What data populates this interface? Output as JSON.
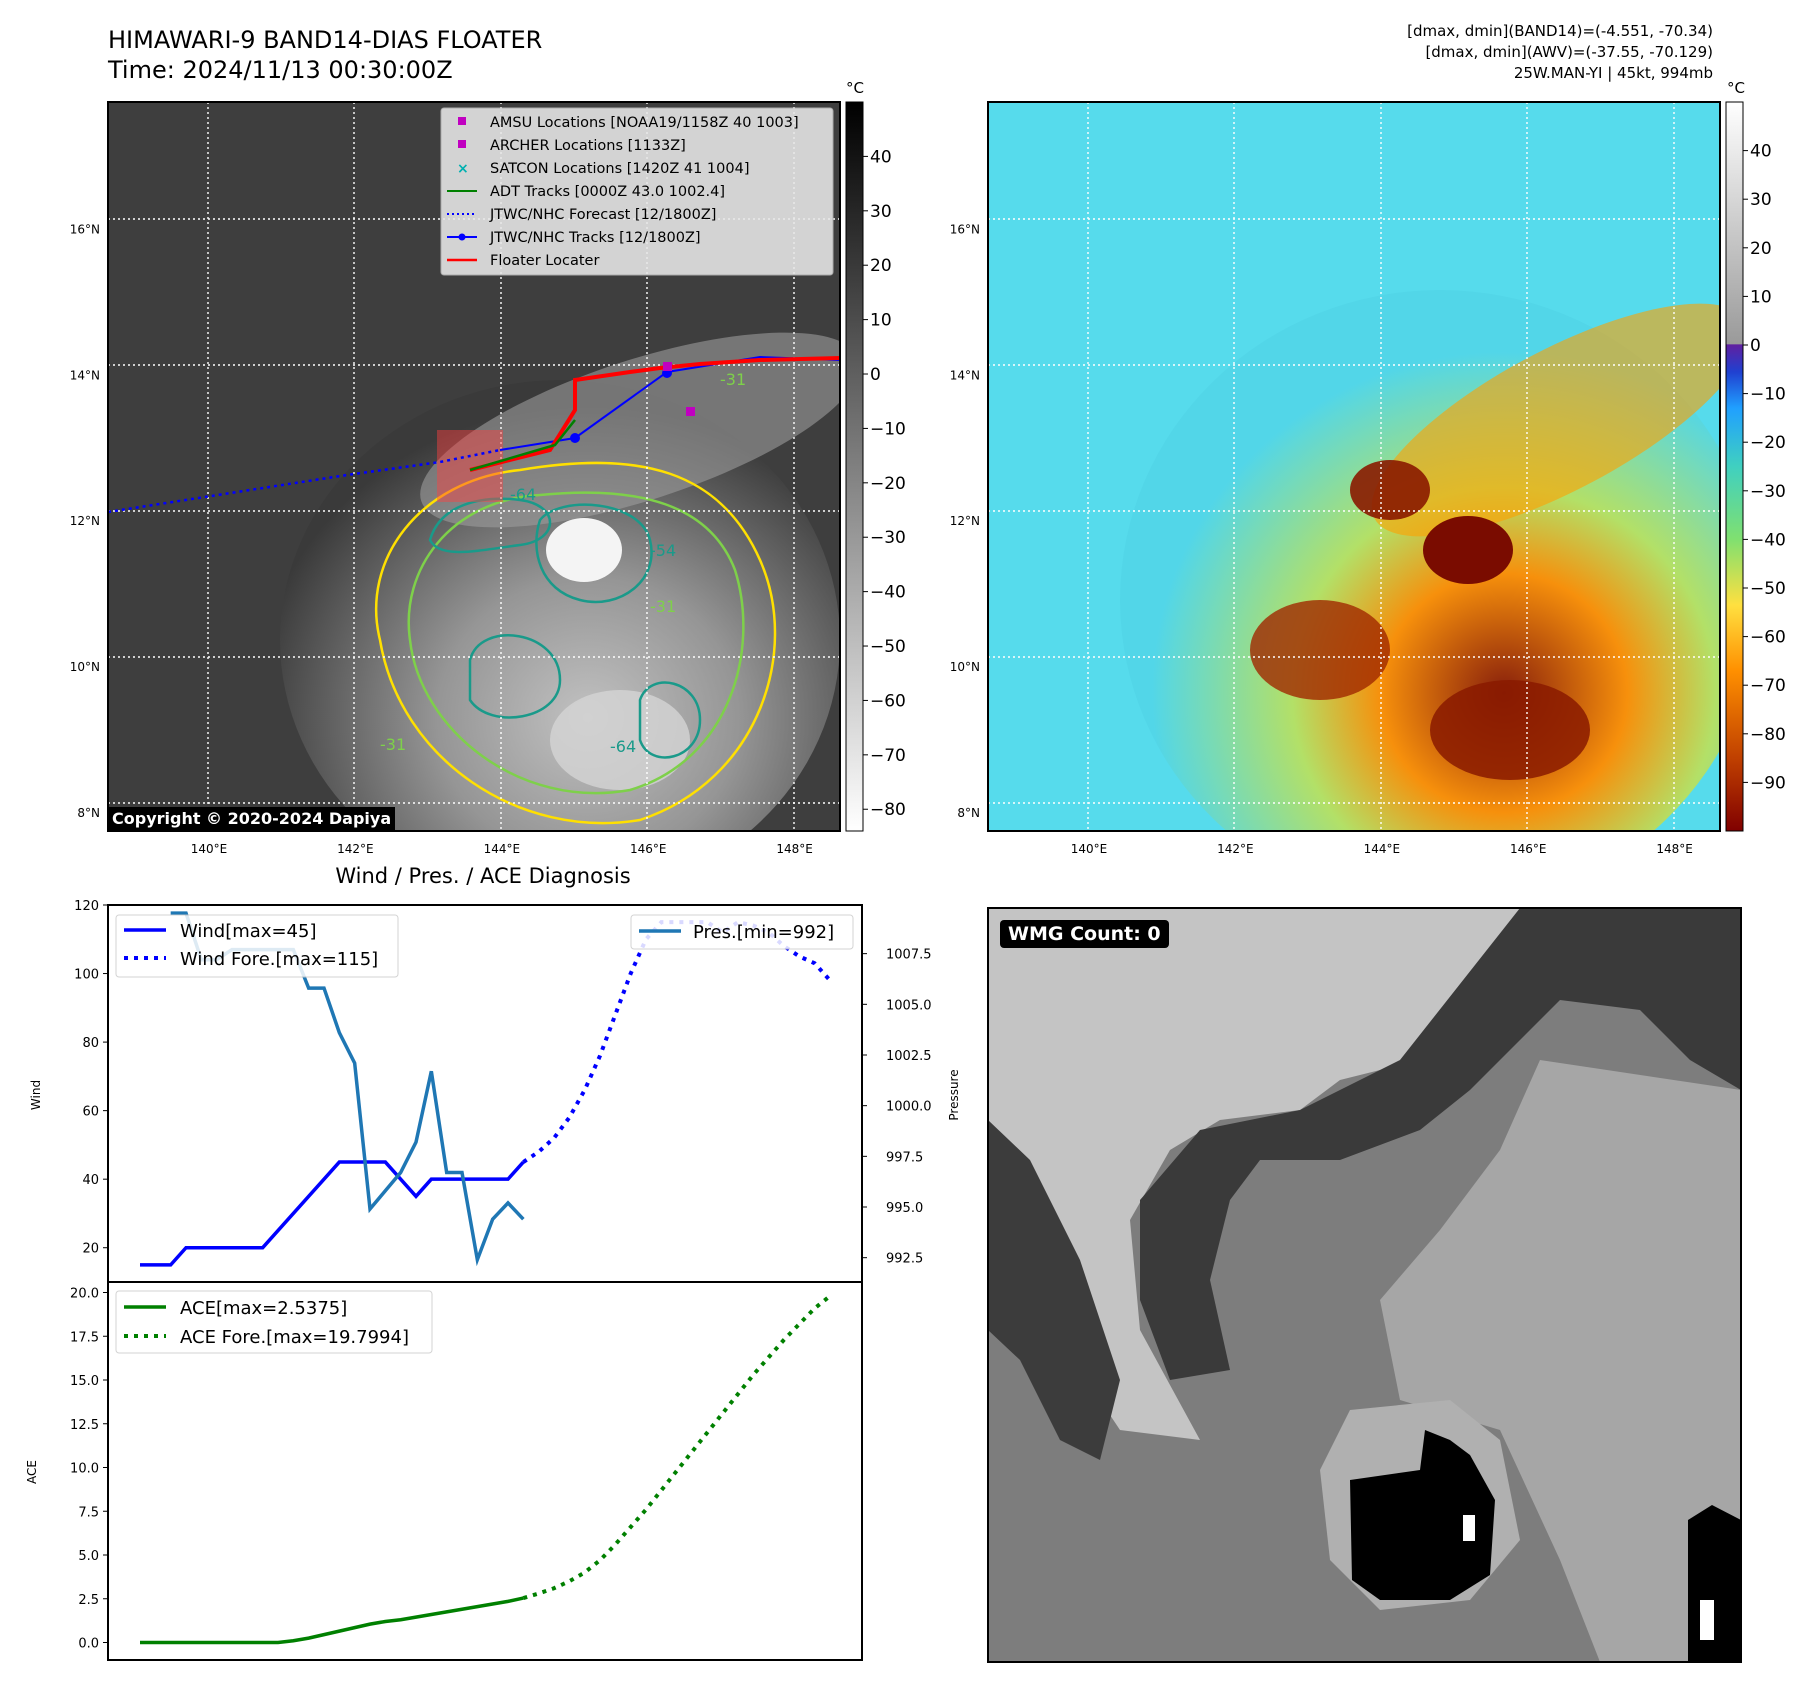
{
  "header": {
    "title_line1": "HIMAWARI-9 BAND14-DIAS FLOATER",
    "title_line2": "Time: 2024/11/13 00:30:00Z",
    "info_line1": "[dmax, dmin](BAND14)=(-4.551, -70.34)",
    "info_line2": "[dmax, dmin](AWV)=(-37.55, -70.129)",
    "info_line3": "25W.MAN-YI | 45kt, 994mb"
  },
  "map_axes": {
    "lat_labels": [
      "16°N",
      "14°N",
      "12°N",
      "10°N",
      "8°N"
    ],
    "lat_values": [
      16,
      14,
      12,
      10,
      8
    ],
    "lon_labels": [
      "140°E",
      "142°E",
      "144°E",
      "146°E",
      "148°E"
    ],
    "lon_values": [
      140,
      142,
      144,
      146,
      148
    ],
    "lon_range": [
      138.62,
      148.62
    ],
    "lat_range": [
      7.75,
      17.75
    ]
  },
  "ir_colorbar": {
    "unit": "°C",
    "ticks": [
      "40",
      "30",
      "20",
      "10",
      "0",
      "−10",
      "−20",
      "−30",
      "−40",
      "−50",
      "−60",
      "−70",
      "−80"
    ],
    "values": [
      40,
      30,
      20,
      10,
      0,
      -10,
      -20,
      -30,
      -40,
      -50,
      -60,
      -70,
      -80
    ],
    "range": [
      -84,
      50
    ]
  },
  "color_colorbar": {
    "unit": "°C",
    "ticks": [
      "40",
      "30",
      "20",
      "10",
      "0",
      "−10",
      "−20",
      "−30",
      "−40",
      "−50",
      "−60",
      "−70",
      "−80",
      "−90"
    ],
    "values": [
      40,
      30,
      20,
      10,
      0,
      -10,
      -20,
      -30,
      -40,
      -50,
      -60,
      -70,
      -80,
      -90
    ],
    "range": [
      -100,
      50
    ]
  },
  "legend": {
    "items": [
      "AMSU Locations [NOAA19/1158Z 40 1003]",
      "ARCHER Locations [1133Z]",
      "SATCON Locations [1420Z 41 1004]",
      "ADT Tracks [0000Z 43.0 1002.4]",
      "JTWC/NHC Forecast [12/1800Z]",
      "JTWC/NHC Tracks [12/1800Z]",
      "Floater Locater"
    ],
    "colors": [
      "#c000c0",
      "#c000c0",
      "#00b0b0",
      "#008000",
      "#0000ff",
      "#0000ff",
      "#ff0000"
    ]
  },
  "contour_labels": [
    "-64",
    "-54",
    "-31",
    "-64",
    "-31",
    "-31"
  ],
  "copyright": "Copyright © 2020-2024 Dapiya",
  "chart_data": [
    {
      "type": "line",
      "title": "Wind / Pres. / ACE Diagnosis",
      "ylabel": "Wind",
      "ylim": [
        10,
        120
      ],
      "yticks": [
        20,
        40,
        60,
        80,
        100,
        120
      ],
      "x_count": 46,
      "series": [
        {
          "name": "Wind[max=45]",
          "color": "#0000ff",
          "style": "solid",
          "x": [
            0,
            1,
            2,
            3,
            4,
            5,
            6,
            7,
            8,
            9,
            10,
            11,
            12,
            13,
            14,
            15,
            16,
            17,
            18,
            19,
            20,
            21,
            22,
            23,
            24,
            25
          ],
          "values": [
            15,
            15,
            15,
            20,
            20,
            20,
            20,
            20,
            20,
            25,
            30,
            35,
            40,
            45,
            45,
            45,
            45,
            40,
            35,
            40,
            40,
            40,
            40,
            40,
            40,
            45
          ]
        },
        {
          "name": "Wind Fore.[max=115]",
          "color": "#0000ff",
          "style": "dotted",
          "x": [
            25,
            26,
            27,
            28,
            29,
            30,
            31,
            32,
            33,
            34,
            35,
            36,
            37,
            38,
            39,
            40,
            41,
            42,
            43,
            44,
            45
          ],
          "values": [
            45,
            48,
            52,
            58,
            66,
            76,
            88,
            100,
            110,
            115,
            115,
            115,
            115,
            112,
            115,
            114,
            112,
            108,
            105,
            103,
            98
          ]
        }
      ],
      "secondary": {
        "ylabel": "Pressure",
        "ylim": [
          991.3,
          1009.9
        ],
        "yticks": [
          992.5,
          995.0,
          997.5,
          1000.0,
          1002.5,
          1005.0,
          1007.5
        ],
        "ytick_labels": [
          "992.5",
          "995.0",
          "997.5",
          "1000.0",
          "1002.5",
          "1005.0",
          "1007.5"
        ],
        "series": [
          {
            "name": "Pres.[min=992]",
            "color": "#1f77b4",
            "style": "solid",
            "x": [
              2,
              3,
              4,
              5,
              6,
              7,
              8,
              9,
              10,
              11,
              12,
              13,
              14,
              15,
              16,
              17,
              18,
              19,
              20,
              21,
              22,
              23,
              24,
              25
            ],
            "values": [
              1009.5,
              1009.5,
              1007.2,
              1007.2,
              1007.7,
              1007.7,
              1007.7,
              1007.7,
              1007.7,
              1005.8,
              1005.8,
              1003.6,
              1002.1,
              994.9,
              995.8,
              996.7,
              998.2,
              1001.7,
              996.7,
              996.7,
              992.4,
              994.4,
              995.2,
              994.4
            ]
          }
        ]
      }
    },
    {
      "type": "line",
      "ylabel": "ACE",
      "ylim": [
        -1.0,
        20.6
      ],
      "yticks": [
        0.0,
        2.5,
        5.0,
        7.5,
        10.0,
        12.5,
        15.0,
        17.5,
        20.0
      ],
      "ytick_labels": [
        "0.0",
        "2.5",
        "5.0",
        "7.5",
        "10.0",
        "12.5",
        "15.0",
        "17.5",
        "20.0"
      ],
      "x_count": 46,
      "series": [
        {
          "name": "ACE[max=2.5375]",
          "color": "#008000",
          "style": "solid",
          "x": [
            0,
            2,
            4,
            6,
            8,
            9,
            10,
            11,
            12,
            13,
            14,
            15,
            16,
            17,
            18,
            19,
            20,
            21,
            22,
            23,
            24,
            25
          ],
          "values": [
            0,
            0,
            0,
            0,
            0,
            0,
            0.1,
            0.25,
            0.45,
            0.65,
            0.85,
            1.05,
            1.2,
            1.3,
            1.45,
            1.6,
            1.75,
            1.9,
            2.05,
            2.2,
            2.35,
            2.54
          ]
        },
        {
          "name": "ACE Fore.[max=19.7994]",
          "color": "#008000",
          "style": "dotted",
          "x": [
            25,
            26,
            27,
            28,
            29,
            30,
            31,
            32,
            33,
            34,
            35,
            36,
            37,
            38,
            39,
            40,
            41,
            42,
            43,
            44,
            45
          ],
          "values": [
            2.54,
            2.8,
            3.1,
            3.5,
            4.0,
            4.7,
            5.6,
            6.6,
            7.6,
            8.7,
            9.8,
            10.9,
            12.0,
            13.1,
            14.2,
            15.3,
            16.3,
            17.3,
            18.2,
            19.1,
            19.8
          ]
        }
      ]
    }
  ],
  "wmg": {
    "label": "WMG Count: 0"
  }
}
